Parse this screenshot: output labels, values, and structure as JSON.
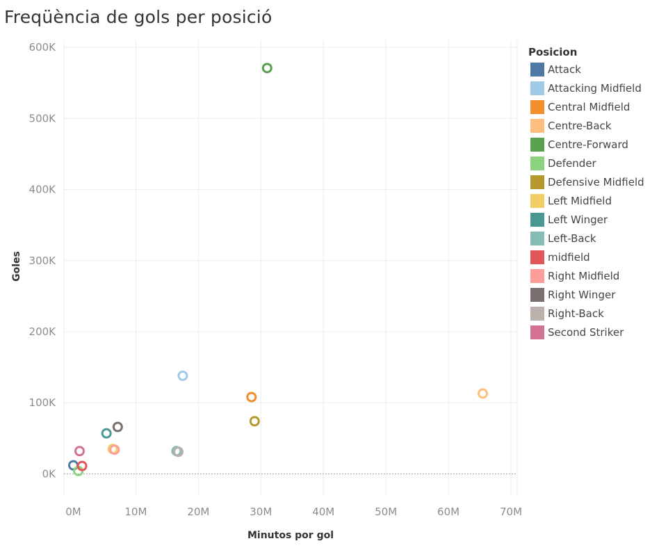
{
  "chart_data": {
    "type": "scatter",
    "title": "Freqüència de gols per posició",
    "xlabel": "Minutos por gol",
    "ylabel": "Goles",
    "xlim": [
      -1500000,
      71000000
    ],
    "ylim": [
      -30000,
      610000
    ],
    "x_ticks": [
      0,
      10000000,
      20000000,
      30000000,
      40000000,
      50000000,
      60000000,
      70000000
    ],
    "x_tick_labels": [
      "0M",
      "10M",
      "20M",
      "30M",
      "40M",
      "50M",
      "60M",
      "70M"
    ],
    "y_ticks": [
      0,
      100000,
      200000,
      300000,
      400000,
      500000,
      600000
    ],
    "y_tick_labels": [
      "0K",
      "100K",
      "200K",
      "300K",
      "400K",
      "500K",
      "600K"
    ],
    "grid": true,
    "legend_title": "Posicion",
    "legend_position": "right",
    "series": [
      {
        "name": "Attack",
        "color": "#4e79a7",
        "x": 0,
        "y": 12000
      },
      {
        "name": "Attacking Midfield",
        "color": "#a0cbe8",
        "x": 17500000,
        "y": 138000
      },
      {
        "name": "Central Midfield",
        "color": "#f28e2b",
        "x": 28500000,
        "y": 108000
      },
      {
        "name": "Centre-Back",
        "color": "#ffbe7d",
        "x": 65500000,
        "y": 113000
      },
      {
        "name": "Centre-Forward",
        "color": "#59a14f",
        "x": 31000000,
        "y": 571000
      },
      {
        "name": "Defender",
        "color": "#8cd17d",
        "x": 800000,
        "y": 4000
      },
      {
        "name": "Defensive Midfield",
        "color": "#b6992d",
        "x": 29000000,
        "y": 74000
      },
      {
        "name": "Left Midfield",
        "color": "#f1ce63",
        "x": 6300000,
        "y": 35000
      },
      {
        "name": "Left Winger",
        "color": "#499894",
        "x": 5300000,
        "y": 57000
      },
      {
        "name": "Left-Back",
        "color": "#86bcb6",
        "x": 16500000,
        "y": 32000
      },
      {
        "name": "midfield",
        "color": "#e15759",
        "x": 1400000,
        "y": 11000
      },
      {
        "name": "Right Midfield",
        "color": "#ff9d9a",
        "x": 6600000,
        "y": 34000
      },
      {
        "name": "Right Winger",
        "color": "#79706e",
        "x": 7100000,
        "y": 66000
      },
      {
        "name": "Right-Back",
        "color": "#bab0ac",
        "x": 16800000,
        "y": 31000
      },
      {
        "name": "Second Striker",
        "color": "#d37295",
        "x": 1000000,
        "y": 32000
      }
    ]
  }
}
